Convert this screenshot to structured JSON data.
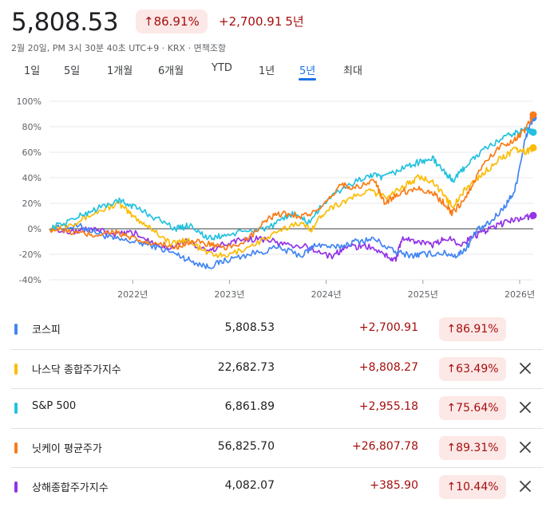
{
  "header": {
    "price": "5,808.53",
    "change_pct": "86.91%",
    "change_abs": "+2,700.91",
    "period": "5년",
    "subline": "2월 20일, PM 3시 30분 40초 UTC+9 · KRX · 면책조항"
  },
  "tabs": [
    {
      "label": "1일",
      "active": false
    },
    {
      "label": "5일",
      "active": false
    },
    {
      "label": "1개월",
      "active": false
    },
    {
      "label": "6개월",
      "active": false
    },
    {
      "label": "YTD",
      "active": false
    },
    {
      "label": "1년",
      "active": false
    },
    {
      "label": "5년",
      "active": true
    },
    {
      "label": "최대",
      "active": false
    }
  ],
  "icons": {
    "up_arrow": "arrow-up-icon",
    "close": "close-icon"
  },
  "colors": {
    "positive": "#a50e0e",
    "positive_bg": "#fce8e6",
    "active_tab": "#1a73e8"
  },
  "rows": [
    {
      "name": "코스피",
      "value": "5,808.53",
      "change": "+2,700.91",
      "pct": "86.91%",
      "color": "#4285f4",
      "removable": false
    },
    {
      "name": "나스닥 종합주가지수",
      "value": "22,682.73",
      "change": "+8,808.27",
      "pct": "63.49%",
      "color": "#fbbc04",
      "removable": true
    },
    {
      "name": "S&P 500",
      "value": "6,861.89",
      "change": "+2,955.18",
      "pct": "75.64%",
      "color": "#24c1e0",
      "removable": true
    },
    {
      "name": "닛케이 평균주가",
      "value": "56,825.70",
      "change": "+26,807.78",
      "pct": "89.31%",
      "color": "#fa7b17",
      "removable": true
    },
    {
      "name": "상해종합주가지수",
      "value": "4,082.07",
      "change": "+385.90",
      "pct": "10.44%",
      "color": "#9334e6",
      "removable": true
    }
  ],
  "chart_data": {
    "type": "line",
    "y_ticks": [
      "100%",
      "80%",
      "60%",
      "40%",
      "20%",
      "0%",
      "-20%",
      "-40%"
    ],
    "ylim": [
      -40,
      100
    ],
    "x_ticks": [
      {
        "label": "2022년",
        "t": 2022.0
      },
      {
        "label": "2023년",
        "t": 2023.0
      },
      {
        "label": "2024년",
        "t": 2024.0
      },
      {
        "label": "2025년",
        "t": 2025.0
      },
      {
        "label": "2026년",
        "t": 2026.0
      }
    ],
    "xlim": [
      2021.14,
      2026.14
    ],
    "grid": true,
    "series": [
      {
        "name": "코스피",
        "color": "#4285f4",
        "points": [
          [
            2021.14,
            0
          ],
          [
            2021.45,
            2
          ],
          [
            2021.6,
            -2
          ],
          [
            2021.8,
            -8
          ],
          [
            2022.0,
            -10
          ],
          [
            2022.2,
            -13
          ],
          [
            2022.45,
            -20
          ],
          [
            2022.6,
            -25
          ],
          [
            2022.78,
            -30
          ],
          [
            2022.95,
            -25
          ],
          [
            2023.2,
            -20
          ],
          [
            2023.5,
            -15
          ],
          [
            2023.75,
            -21
          ],
          [
            2023.9,
            -12
          ],
          [
            2024.1,
            -15
          ],
          [
            2024.3,
            -10
          ],
          [
            2024.5,
            -8
          ],
          [
            2024.7,
            -18
          ],
          [
            2024.9,
            -21
          ],
          [
            2025.0,
            -20
          ],
          [
            2025.2,
            -19
          ],
          [
            2025.35,
            -21
          ],
          [
            2025.45,
            -15
          ],
          [
            2025.55,
            -2
          ],
          [
            2025.7,
            5
          ],
          [
            2025.85,
            18
          ],
          [
            2025.95,
            30
          ],
          [
            2026.05,
            68
          ],
          [
            2026.1,
            80
          ],
          [
            2026.14,
            86.91
          ]
        ]
      },
      {
        "name": "나스닥 종합주가지수",
        "color": "#fbbc04",
        "points": [
          [
            2021.14,
            0
          ],
          [
            2021.4,
            5
          ],
          [
            2021.6,
            12
          ],
          [
            2021.85,
            20
          ],
          [
            2022.0,
            10
          ],
          [
            2022.2,
            0
          ],
          [
            2022.4,
            -12
          ],
          [
            2022.55,
            -8
          ],
          [
            2022.75,
            -18
          ],
          [
            2022.95,
            -22
          ],
          [
            2023.2,
            -14
          ],
          [
            2023.45,
            -5
          ],
          [
            2023.7,
            5
          ],
          [
            2023.85,
            0
          ],
          [
            2024.0,
            15
          ],
          [
            2024.2,
            22
          ],
          [
            2024.45,
            30
          ],
          [
            2024.6,
            25
          ],
          [
            2024.8,
            33
          ],
          [
            2024.95,
            40
          ],
          [
            2025.1,
            38
          ],
          [
            2025.25,
            22
          ],
          [
            2025.32,
            18
          ],
          [
            2025.45,
            32
          ],
          [
            2025.6,
            42
          ],
          [
            2025.8,
            55
          ],
          [
            2025.95,
            62
          ],
          [
            2026.06,
            60
          ],
          [
            2026.14,
            63.49
          ]
        ]
      },
      {
        "name": "S&P 500",
        "color": "#24c1e0",
        "points": [
          [
            2021.14,
            0
          ],
          [
            2021.4,
            8
          ],
          [
            2021.6,
            15
          ],
          [
            2021.85,
            22
          ],
          [
            2022.0,
            18
          ],
          [
            2022.2,
            10
          ],
          [
            2022.45,
            0
          ],
          [
            2022.6,
            3
          ],
          [
            2022.78,
            -8
          ],
          [
            2022.95,
            -5
          ],
          [
            2023.2,
            -2
          ],
          [
            2023.45,
            2
          ],
          [
            2023.65,
            12
          ],
          [
            2023.82,
            5
          ],
          [
            2024.0,
            22
          ],
          [
            2024.2,
            33
          ],
          [
            2024.45,
            42
          ],
          [
            2024.6,
            40
          ],
          [
            2024.8,
            48
          ],
          [
            2024.95,
            52
          ],
          [
            2025.1,
            55
          ],
          [
            2025.25,
            42
          ],
          [
            2025.32,
            38
          ],
          [
            2025.45,
            50
          ],
          [
            2025.6,
            60
          ],
          [
            2025.8,
            70
          ],
          [
            2025.95,
            75
          ],
          [
            2026.06,
            78
          ],
          [
            2026.14,
            75.64
          ]
        ]
      },
      {
        "name": "닛케이 평균주가",
        "color": "#fa7b17",
        "points": [
          [
            2021.14,
            0
          ],
          [
            2021.4,
            -3
          ],
          [
            2021.6,
            -5
          ],
          [
            2021.8,
            -2
          ],
          [
            2022.0,
            -8
          ],
          [
            2022.2,
            -12
          ],
          [
            2022.45,
            -14
          ],
          [
            2022.6,
            -10
          ],
          [
            2022.8,
            -12
          ],
          [
            2022.95,
            -16
          ],
          [
            2023.2,
            -8
          ],
          [
            2023.4,
            8
          ],
          [
            2023.55,
            12
          ],
          [
            2023.75,
            10
          ],
          [
            2023.95,
            15
          ],
          [
            2024.15,
            35
          ],
          [
            2024.3,
            32
          ],
          [
            2024.5,
            38
          ],
          [
            2024.6,
            20
          ],
          [
            2024.75,
            28
          ],
          [
            2024.95,
            32
          ],
          [
            2025.1,
            28
          ],
          [
            2025.25,
            18
          ],
          [
            2025.3,
            12
          ],
          [
            2025.45,
            25
          ],
          [
            2025.6,
            48
          ],
          [
            2025.8,
            65
          ],
          [
            2025.95,
            70
          ],
          [
            2026.06,
            78
          ],
          [
            2026.14,
            89.31
          ]
        ]
      },
      {
        "name": "상해종합주가지수",
        "color": "#9334e6",
        "points": [
          [
            2021.14,
            0
          ],
          [
            2021.4,
            -2
          ],
          [
            2021.6,
            0
          ],
          [
            2021.8,
            -5
          ],
          [
            2022.0,
            -3
          ],
          [
            2022.2,
            -10
          ],
          [
            2022.35,
            -15
          ],
          [
            2022.55,
            -10
          ],
          [
            2022.78,
            -18
          ],
          [
            2022.95,
            -12
          ],
          [
            2023.15,
            -8
          ],
          [
            2023.35,
            -8
          ],
          [
            2023.55,
            -12
          ],
          [
            2023.8,
            -14
          ],
          [
            2024.05,
            -22
          ],
          [
            2024.2,
            -15
          ],
          [
            2024.4,
            -13
          ],
          [
            2024.6,
            -20
          ],
          [
            2024.72,
            -25
          ],
          [
            2024.78,
            -8
          ],
          [
            2024.95,
            -10
          ],
          [
            2025.1,
            -13
          ],
          [
            2025.25,
            -7
          ],
          [
            2025.4,
            -12
          ],
          [
            2025.55,
            -5
          ],
          [
            2025.7,
            0
          ],
          [
            2025.85,
            5
          ],
          [
            2026.0,
            8
          ],
          [
            2026.14,
            10.44
          ]
        ]
      }
    ]
  }
}
